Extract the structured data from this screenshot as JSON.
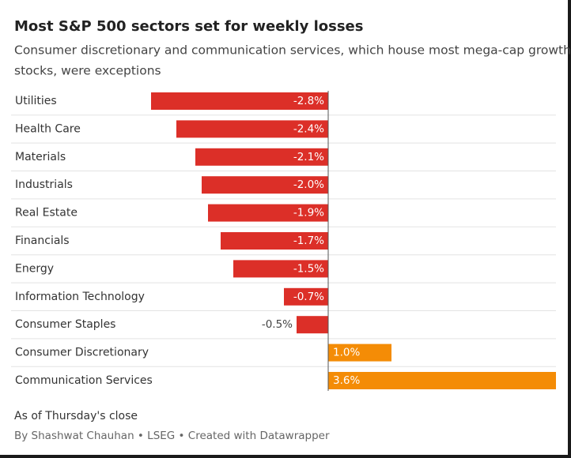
{
  "chart_data": {
    "type": "bar",
    "orientation": "horizontal",
    "title": "Most S&P 500 sectors set for weekly losses",
    "subtitle": [
      "Consumer discretionary and communication services, which house most mega-cap growth",
      "stocks, were exceptions"
    ],
    "categories": [
      "Utilities",
      "Health Care",
      "Materials",
      "Industrials",
      "Real Estate",
      "Financials",
      "Energy",
      "Information Technology",
      "Consumer Staples",
      "Consumer Discretionary",
      "Communication Services"
    ],
    "values": [
      -2.8,
      -2.4,
      -2.1,
      -2.0,
      -1.9,
      -1.7,
      -1.5,
      -0.7,
      -0.5,
      1.0,
      3.6
    ],
    "value_labels": [
      "-2.8%",
      "-2.4%",
      "-2.1%",
      "-2.0%",
      "-1.9%",
      "-1.7%",
      "-1.5%",
      "-0.7%",
      "-0.5%",
      "1.0%",
      "3.6%"
    ],
    "negative_color": "#dc2f28",
    "positive_color": "#f48c06",
    "note": "As of Thursday's close",
    "source": "By Shashwat Chauhan • LSEG • Created with Datawrapper"
  }
}
